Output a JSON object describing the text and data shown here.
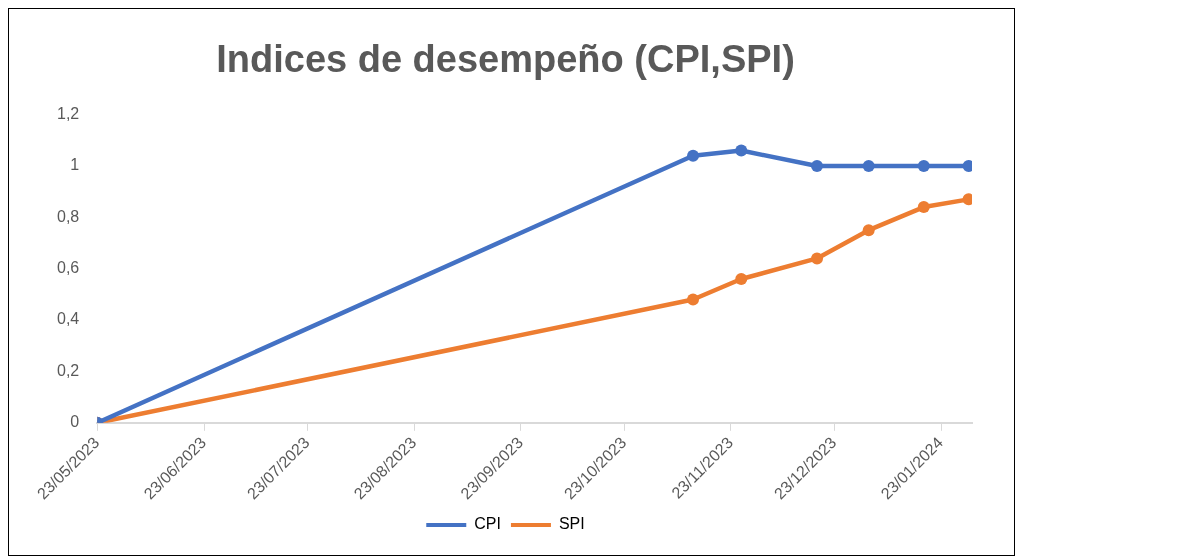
{
  "chart_data": {
    "type": "line",
    "title": "Indices de desempeño (CPI,SPI)",
    "x": [
      "2023-05-23",
      "2023-11-12",
      "2023-11-26",
      "2023-12-18",
      "2024-01-02",
      "2024-01-18",
      "2024-01-31"
    ],
    "series": [
      {
        "name": "CPI",
        "color": "#4472c4",
        "values": [
          0,
          1.04,
          1.06,
          1,
          1,
          1,
          1
        ]
      },
      {
        "name": "SPI",
        "color": "#ed7d31",
        "values": [
          0,
          0.48,
          0.56,
          0.64,
          0.75,
          0.84,
          0.87
        ]
      }
    ],
    "xlim": [
      "2023-05-23",
      "2024-02-01"
    ],
    "xticks": [
      {
        "value": "2023-05-23",
        "label": "23/05/2023"
      },
      {
        "value": "2023-06-23",
        "label": "23/06/2023"
      },
      {
        "value": "2023-07-23",
        "label": "23/07/2023"
      },
      {
        "value": "2023-08-23",
        "label": "23/08/2023"
      },
      {
        "value": "2023-09-23",
        "label": "23/09/2023"
      },
      {
        "value": "2023-10-23",
        "label": "23/10/2023"
      },
      {
        "value": "2023-11-23",
        "label": "23/11/2023"
      },
      {
        "value": "2023-12-23",
        "label": "23/12/2023"
      },
      {
        "value": "2024-01-23",
        "label": "23/01/2024"
      }
    ],
    "ylim": [
      0,
      1.2
    ],
    "yticks": [
      0,
      {
        "value": 0.2,
        "label": "0,2"
      },
      {
        "value": 0.4,
        "label": "0,4"
      },
      {
        "value": 0.6,
        "label": "0,6"
      },
      {
        "value": 0.8,
        "label": "0,8"
      },
      1,
      {
        "value": 1.2,
        "label": "1,2"
      }
    ],
    "grid": false,
    "legend": "bottom",
    "marker": "circle",
    "line_style": "solid"
  }
}
